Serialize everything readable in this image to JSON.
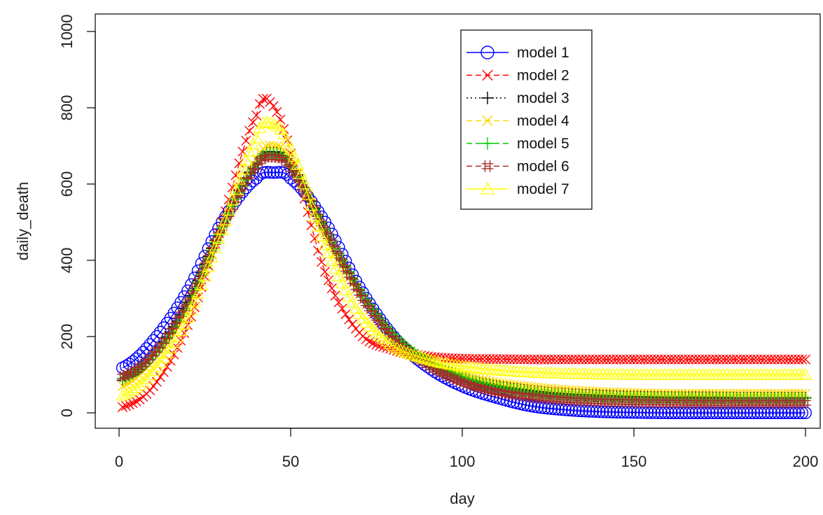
{
  "chart_data": {
    "type": "line",
    "title": "",
    "xlabel": "day",
    "ylabel": "daily_death",
    "xlim": [
      0,
      200
    ],
    "ylim": [
      0,
      1000
    ],
    "x_ticks": [
      "0",
      "50",
      "100",
      "150",
      "200"
    ],
    "y_ticks": [
      "0",
      "200",
      "400",
      "600",
      "800",
      "1000"
    ],
    "grid": false,
    "legend_position": "top-right (inside plot, near center)",
    "series": [
      {
        "name": "model 1",
        "color": "#0000ff",
        "marker": "o",
        "line": "solid",
        "x": [
          1,
          10,
          20,
          30,
          40,
          45,
          50,
          60,
          70,
          80,
          90,
          100,
          110,
          120,
          130,
          140,
          150,
          160,
          170,
          180,
          190,
          200
        ],
        "y": [
          118,
          190,
          320,
          500,
          615,
          630,
          615,
          500,
          330,
          200,
          120,
          70,
          40,
          18,
          8,
          3,
          1,
          0,
          0,
          0,
          0,
          0
        ]
      },
      {
        "name": "model 2",
        "color": "#ff0000",
        "marker": "x",
        "line": "dashed",
        "x": [
          1,
          10,
          20,
          30,
          40,
          44,
          50,
          60,
          70,
          80,
          90,
          100,
          110,
          120,
          130,
          140,
          150,
          160,
          170,
          180,
          190,
          200
        ],
        "y": [
          15,
          70,
          230,
          500,
          780,
          815,
          680,
          370,
          210,
          165,
          148,
          142,
          141,
          140,
          140,
          140,
          140,
          140,
          140,
          140,
          140,
          140
        ]
      },
      {
        "name": "model 3",
        "color": "#000000",
        "marker": "+",
        "line": "dotted",
        "x": [
          1,
          10,
          20,
          30,
          40,
          45,
          50,
          60,
          70,
          80,
          90,
          100,
          110,
          120,
          130,
          140,
          150,
          160,
          170,
          180,
          190,
          200
        ],
        "y": [
          85,
          150,
          290,
          490,
          655,
          685,
          650,
          480,
          320,
          200,
          135,
          95,
          72,
          58,
          50,
          46,
          43,
          42,
          41,
          40,
          40,
          40
        ]
      },
      {
        "name": "model 4",
        "color": "#ffd700",
        "marker": "x",
        "line": "dashed",
        "x": [
          1,
          10,
          20,
          30,
          40,
          45,
          50,
          60,
          70,
          80,
          90,
          100,
          110,
          120,
          130,
          140,
          150,
          160,
          170,
          180,
          190,
          200
        ],
        "y": [
          70,
          135,
          275,
          480,
          665,
          700,
          660,
          470,
          310,
          195,
          135,
          100,
          80,
          68,
          60,
          55,
          52,
          50,
          50,
          50,
          50,
          50
        ]
      },
      {
        "name": "model 5",
        "color": "#00cc00",
        "marker": "+",
        "line": "dashed",
        "x": [
          1,
          10,
          20,
          30,
          40,
          45,
          50,
          60,
          70,
          80,
          90,
          100,
          110,
          120,
          130,
          140,
          150,
          160,
          170,
          180,
          190,
          200
        ],
        "y": [
          90,
          150,
          285,
          485,
          650,
          680,
          645,
          485,
          325,
          205,
          135,
          92,
          68,
          54,
          46,
          42,
          40,
          39,
          38,
          38,
          38,
          38
        ]
      },
      {
        "name": "model 6",
        "color": "#a52a2a",
        "marker": "#",
        "line": "dashed",
        "x": [
          1,
          10,
          20,
          30,
          40,
          45,
          50,
          60,
          70,
          80,
          90,
          100,
          110,
          120,
          130,
          140,
          150,
          160,
          170,
          180,
          190,
          200
        ],
        "y": [
          95,
          155,
          290,
          485,
          645,
          670,
          640,
          480,
          315,
          195,
          125,
          80,
          55,
          42,
          34,
          30,
          28,
          27,
          26,
          26,
          26,
          26
        ]
      },
      {
        "name": "model 7",
        "color": "#ffff00",
        "marker": "triangle",
        "line": "solid",
        "x": [
          1,
          10,
          20,
          30,
          40,
          44,
          50,
          60,
          70,
          80,
          90,
          100,
          110,
          120,
          130,
          140,
          150,
          160,
          170,
          180,
          190,
          200
        ],
        "y": [
          45,
          110,
          250,
          480,
          720,
          760,
          690,
          440,
          260,
          175,
          140,
          122,
          112,
          106,
          103,
          101,
          100,
          100,
          100,
          100,
          100,
          100
        ]
      }
    ]
  }
}
